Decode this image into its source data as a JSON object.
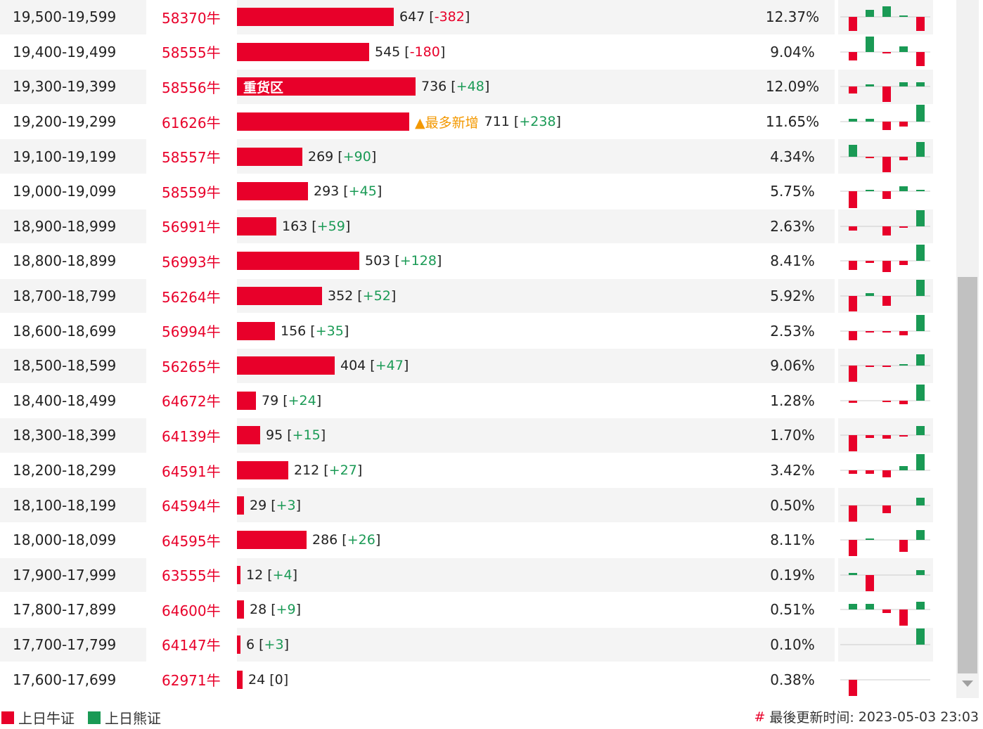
{
  "colors": {
    "bull": "#e8002a",
    "bear": "#1a9a55",
    "accent_new": "#f39800"
  },
  "rows": [
    {
      "range": "19,500-19,599",
      "code": "58370牛",
      "value": 647,
      "change": "-382",
      "pct": "12.37%",
      "tag": "",
      "spark": [
        -2,
        1,
        1.5,
        0.2,
        -2
      ]
    },
    {
      "range": "19,400-19,499",
      "code": "58555牛",
      "value": 545,
      "change": "-180",
      "pct": "9.04%",
      "tag": "",
      "spark": [
        -1.2,
        2.2,
        -0.2,
        0.8,
        -2
      ]
    },
    {
      "range": "19,300-19,399",
      "code": "58556牛",
      "value": 736,
      "change": "+48",
      "pct": "12.09%",
      "tag": "重货区",
      "spark": [
        -1,
        0.3,
        -2.2,
        0.6,
        0.6
      ]
    },
    {
      "range": "19,200-19,299",
      "code": "61626牛",
      "value": 711,
      "change": "+238",
      "pct": "11.65%",
      "tag": "",
      "newest": "最多新增",
      "spark": [
        0.4,
        0.4,
        -1.2,
        -0.7,
        2.4
      ]
    },
    {
      "range": "19,100-19,199",
      "code": "58557牛",
      "value": 269,
      "change": "+90",
      "pct": "4.34%",
      "tag": "",
      "spark": [
        1.7,
        -0.1,
        -2.2,
        -0.5,
        2.1
      ]
    },
    {
      "range": "19,000-19,099",
      "code": "58559牛",
      "value": 293,
      "change": "+45",
      "pct": "5.75%",
      "tag": "",
      "spark": [
        -2.4,
        0.1,
        -1.1,
        0.7,
        0.1
      ]
    },
    {
      "range": "18,900-18,999",
      "code": "56991牛",
      "value": 163,
      "change": "+59",
      "pct": "2.63%",
      "tag": "",
      "spark": [
        -0.6,
        0,
        -1.3,
        -0.2,
        2.3
      ]
    },
    {
      "range": "18,800-18,899",
      "code": "56993牛",
      "value": 503,
      "change": "+128",
      "pct": "8.41%",
      "tag": "",
      "spark": [
        -1.3,
        -0.3,
        -1.6,
        -0.6,
        2.3
      ]
    },
    {
      "range": "18,700-18,799",
      "code": "56264牛",
      "value": 352,
      "change": "+52",
      "pct": "5.92%",
      "tag": "",
      "spark": [
        -2.2,
        0.4,
        -1.4,
        0,
        2.3
      ]
    },
    {
      "range": "18,600-18,699",
      "code": "56994牛",
      "value": 156,
      "change": "+35",
      "pct": "2.53%",
      "tag": "",
      "spark": [
        -1.3,
        -0.2,
        -0.2,
        -0.6,
        2.3
      ]
    },
    {
      "range": "18,500-18,599",
      "code": "56265牛",
      "value": 404,
      "change": "+47",
      "pct": "9.06%",
      "tag": "",
      "spark": [
        -2.3,
        -0.2,
        -0.2,
        0.2,
        1.6
      ]
    },
    {
      "range": "18,400-18,499",
      "code": "64672牛",
      "value": 79,
      "change": "+24",
      "pct": "1.28%",
      "tag": "",
      "spark": [
        -0.3,
        0,
        -0.2,
        -0.5,
        2.3
      ]
    },
    {
      "range": "18,300-18,399",
      "code": "64139牛",
      "value": 95,
      "change": "+15",
      "pct": "1.70%",
      "tag": "",
      "spark": [
        -2.3,
        -0.4,
        -0.5,
        -0.1,
        1.3
      ]
    },
    {
      "range": "18,200-18,299",
      "code": "64591牛",
      "value": 212,
      "change": "+27",
      "pct": "3.42%",
      "tag": "",
      "spark": [
        -0.5,
        -0.5,
        -1,
        0.6,
        2.3
      ]
    },
    {
      "range": "18,100-18,199",
      "code": "64594牛",
      "value": 29,
      "change": "+3",
      "pct": "0.50%",
      "tag": "",
      "spark": [
        -2.3,
        0,
        -1.1,
        0,
        1.1
      ]
    },
    {
      "range": "18,000-18,099",
      "code": "64595牛",
      "value": 286,
      "change": "+26",
      "pct": "8.11%",
      "tag": "",
      "spark": [
        -2.3,
        0.1,
        0,
        -1.7,
        1.4
      ]
    },
    {
      "range": "17,900-17,999",
      "code": "63555牛",
      "value": 12,
      "change": "+4",
      "pct": "0.19%",
      "tag": "",
      "spark": [
        0.3,
        -2.3,
        0,
        0,
        0.7
      ]
    },
    {
      "range": "17,800-17,899",
      "code": "64600牛",
      "value": 28,
      "change": "+9",
      "pct": "0.51%",
      "tag": "",
      "spark": [
        0.8,
        0.8,
        -0.5,
        -2.3,
        1.1
      ]
    },
    {
      "range": "17,700-17,799",
      "code": "64147牛",
      "value": 6,
      "change": "+3",
      "pct": "0.10%",
      "tag": "",
      "spark": [
        0,
        0,
        0,
        0,
        2.3
      ]
    },
    {
      "range": "17,600-17,699",
      "code": "62971牛",
      "value": 24,
      "change": "0",
      "pct": "0.38%",
      "tag": "",
      "spark": [
        -2.3,
        0,
        0,
        0,
        0
      ]
    }
  ],
  "bar_max_value": 736,
  "footer": {
    "legend_bull": "上日牛证",
    "legend_bear": "上日熊证",
    "hash": "#",
    "updated_label": "最後更新时间:",
    "updated_time": "2023-05-03 23:03"
  }
}
